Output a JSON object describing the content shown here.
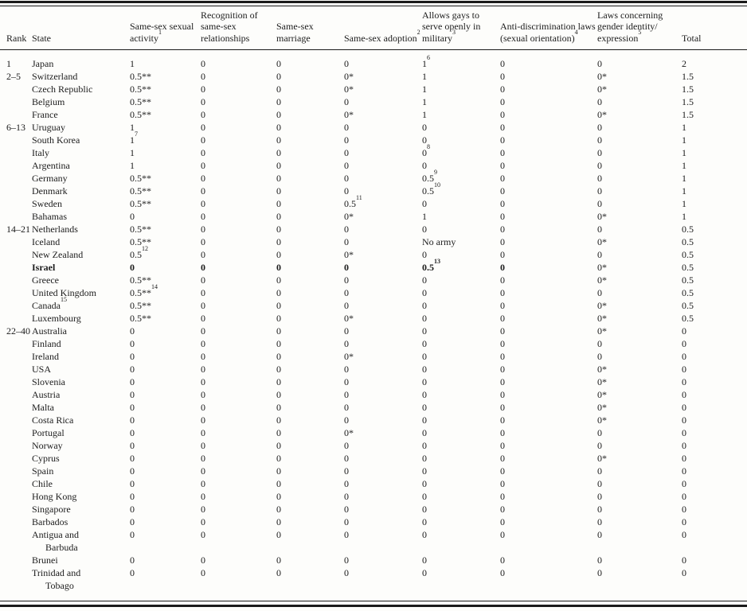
{
  "colors": {
    "text": "#1c1c1c",
    "background": "#fdfdfb",
    "rule": "#1a1a1a"
  },
  "table": {
    "columns": [
      {
        "label": "Rank"
      },
      {
        "label": "State"
      },
      {
        "label": "Same-sex sexual activity^1"
      },
      {
        "label": "Recognition of same-sex relationships"
      },
      {
        "label": "Same-sex marriage"
      },
      {
        "label": "Same-sex adoption^2"
      },
      {
        "label": "Allows gays to serve openly in military^3"
      },
      {
        "label": "Anti-discrimination laws (sexual orientation)^4"
      },
      {
        "label": "Laws concerning gender identity/ expression^5"
      },
      {
        "label": "Total"
      }
    ],
    "rows": [
      {
        "cells": [
          "1",
          "Japan",
          "1",
          "0",
          "0",
          "0",
          "1^6",
          "0",
          "0",
          "2"
        ]
      },
      {
        "cells": [
          "2–5",
          "Switzerland",
          "0.5**",
          "0",
          "0",
          "0*",
          "1",
          "0",
          "0*",
          "1.5"
        ]
      },
      {
        "cells": [
          "",
          "Czech Republic",
          "0.5**",
          "0",
          "0",
          "0*",
          "1",
          "0",
          "0*",
          "1.5"
        ]
      },
      {
        "cells": [
          "",
          "Belgium",
          "0.5**",
          "0",
          "0",
          "0",
          "1",
          "0",
          "0",
          "1.5"
        ]
      },
      {
        "cells": [
          "",
          "France",
          "0.5**",
          "0",
          "0",
          "0*",
          "1",
          "0",
          "0*",
          "1.5"
        ]
      },
      {
        "cells": [
          "6–13",
          "Uruguay",
          "1",
          "0",
          "0",
          "0",
          "0",
          "0",
          "0",
          "1"
        ]
      },
      {
        "cells": [
          "",
          "South Korea",
          "1^7",
          "0",
          "0",
          "0",
          "0",
          "0",
          "0",
          "1"
        ]
      },
      {
        "cells": [
          "",
          "Italy",
          "1",
          "0",
          "0",
          "0",
          "0^8",
          "0",
          "0",
          "1"
        ]
      },
      {
        "cells": [
          "",
          "Argentina",
          "1",
          "0",
          "0",
          "0",
          "0",
          "0",
          "0",
          "1"
        ]
      },
      {
        "cells": [
          "",
          "Germany",
          "0.5**",
          "0",
          "0",
          "0",
          "0.5^9",
          "0",
          "0",
          "1"
        ]
      },
      {
        "cells": [
          "",
          "Denmark",
          "0.5**",
          "0",
          "0",
          "0",
          "0.5^10",
          "0",
          "0",
          "1"
        ]
      },
      {
        "cells": [
          "",
          "Sweden",
          "0.5**",
          "0",
          "0",
          "0.5^11",
          "0",
          "0",
          "0",
          "1"
        ]
      },
      {
        "cells": [
          "",
          "Bahamas",
          "0",
          "0",
          "0",
          "0*",
          "1",
          "0",
          "0*",
          "1"
        ]
      },
      {
        "cells": [
          "14–21",
          "Netherlands",
          "0.5**",
          "0",
          "0",
          "0",
          "0",
          "0",
          "0",
          "0.5"
        ]
      },
      {
        "cells": [
          "",
          "Iceland",
          "0.5**",
          "0",
          "0",
          "0",
          "No army",
          "0",
          "0*",
          "0.5"
        ]
      },
      {
        "cells": [
          "",
          "New Zealand",
          "0.5^12",
          "0",
          "0",
          "0*",
          "0",
          "0",
          "0",
          "0.5"
        ]
      },
      {
        "cells": [
          "",
          "Israel",
          "0",
          "0",
          "0",
          "0",
          "0.5^13",
          "0",
          "0*",
          "0.5"
        ],
        "bold": true
      },
      {
        "cells": [
          "",
          "Greece",
          "0.5**",
          "0",
          "0",
          "0",
          "0",
          "0",
          "0*",
          "0.5"
        ]
      },
      {
        "cells": [
          "",
          "United Kingdom",
          "0.5**^14",
          "0",
          "0",
          "0",
          "0",
          "0",
          "0",
          "0.5"
        ]
      },
      {
        "cells": [
          "",
          "Canada^15",
          "0.5**",
          "0",
          "0",
          "0",
          "0",
          "0",
          "0*",
          "0.5"
        ]
      },
      {
        "cells": [
          "",
          "Luxembourg",
          "0.5**",
          "0",
          "0",
          "0*",
          "0",
          "0",
          "0*",
          "0.5"
        ]
      },
      {
        "cells": [
          "22–40",
          "Australia",
          "0",
          "0",
          "0",
          "0",
          "0",
          "0",
          "0*",
          "0"
        ]
      },
      {
        "cells": [
          "",
          "Finland",
          "0",
          "0",
          "0",
          "0",
          "0",
          "0",
          "0",
          "0"
        ]
      },
      {
        "cells": [
          "",
          "Ireland",
          "0",
          "0",
          "0",
          "0*",
          "0",
          "0",
          "0",
          "0"
        ]
      },
      {
        "cells": [
          "",
          "USA",
          "0",
          "0",
          "0",
          "0",
          "0",
          "0",
          "0*",
          "0"
        ]
      },
      {
        "cells": [
          "",
          "Slovenia",
          "0",
          "0",
          "0",
          "0",
          "0",
          "0",
          "0*",
          "0"
        ]
      },
      {
        "cells": [
          "",
          "Austria",
          "0",
          "0",
          "0",
          "0",
          "0",
          "0",
          "0*",
          "0"
        ]
      },
      {
        "cells": [
          "",
          "Malta",
          "0",
          "0",
          "0",
          "0",
          "0",
          "0",
          "0*",
          "0"
        ]
      },
      {
        "cells": [
          "",
          "Costa Rica",
          "0",
          "0",
          "0",
          "0",
          "0",
          "0",
          "0*",
          "0"
        ]
      },
      {
        "cells": [
          "",
          "Portugal",
          "0",
          "0",
          "0",
          "0*",
          "0",
          "0",
          "0",
          "0"
        ]
      },
      {
        "cells": [
          "",
          "Norway",
          "0",
          "0",
          "0",
          "0",
          "0",
          "0",
          "0",
          "0"
        ]
      },
      {
        "cells": [
          "",
          "Cyprus",
          "0",
          "0",
          "0",
          "0",
          "0",
          "0",
          "0*",
          "0"
        ]
      },
      {
        "cells": [
          "",
          "Spain",
          "0",
          "0",
          "0",
          "0",
          "0",
          "0",
          "0",
          "0"
        ]
      },
      {
        "cells": [
          "",
          "Chile",
          "0",
          "0",
          "0",
          "0",
          "0",
          "0",
          "0",
          "0"
        ]
      },
      {
        "cells": [
          "",
          "Hong Kong",
          "0",
          "0",
          "0",
          "0",
          "0",
          "0",
          "0",
          "0"
        ]
      },
      {
        "cells": [
          "",
          "Singapore",
          "0",
          "0",
          "0",
          "0",
          "0",
          "0",
          "0",
          "0"
        ]
      },
      {
        "cells": [
          "",
          "Barbados",
          "0",
          "0",
          "0",
          "0",
          "0",
          "0",
          "0",
          "0"
        ]
      },
      {
        "cells": [
          "",
          "Antigua and\nBarbuda",
          "0",
          "0",
          "0",
          "0",
          "0",
          "0",
          "0",
          "0"
        ]
      },
      {
        "cells": [
          "",
          "Brunei",
          "0",
          "0",
          "0",
          "0",
          "0",
          "0",
          "0",
          "0"
        ]
      },
      {
        "cells": [
          "",
          "Trinidad and\nTobago",
          "0",
          "0",
          "0",
          "0",
          "0",
          "0",
          "0",
          "0"
        ]
      }
    ]
  }
}
